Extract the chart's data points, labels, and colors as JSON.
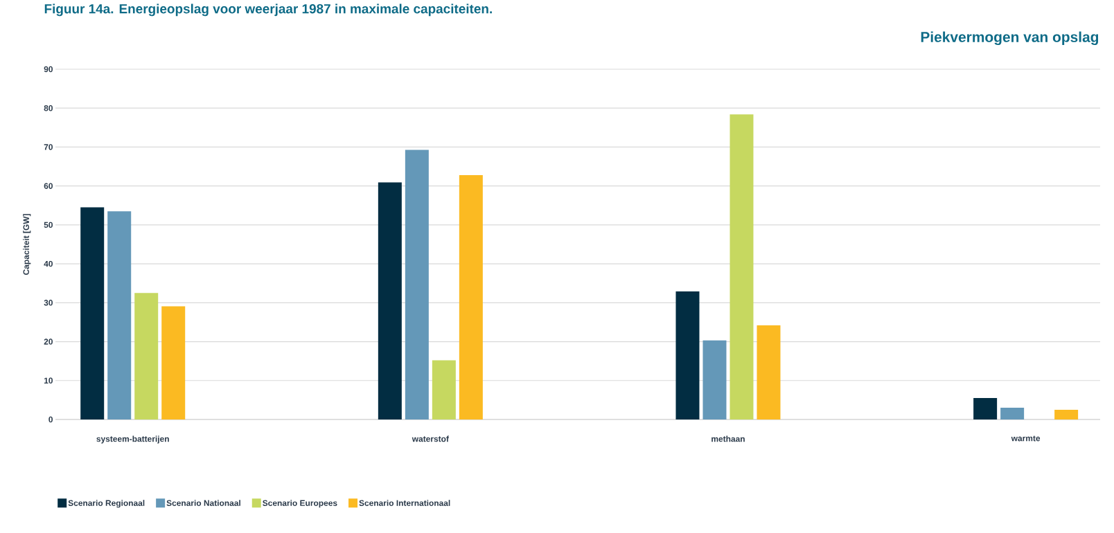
{
  "chart_data": {
    "type": "bar",
    "title": "Figuur 14a. Energieopslag voor weerjaar 1987 in maximale capaciteiten.",
    "subtitle": "Piekvermogen van opslag",
    "ylabel": "Capaciteit [GW]",
    "categories": [
      "systeem-batterijen",
      "waterstof",
      "methaan",
      "warmte"
    ],
    "series": [
      {
        "name": "Scenario Regionaal",
        "color": "#022d42",
        "values": [
          54.5,
          60.9,
          32.9,
          5.5
        ]
      },
      {
        "name": "Scenario Nationaal",
        "color": "#6498b8",
        "values": [
          53.5,
          69.3,
          20.3,
          3.0
        ]
      },
      {
        "name": "Scenario Europees",
        "color": "#c6d860",
        "values": [
          32.5,
          15.2,
          78.4,
          null
        ]
      },
      {
        "name": "Scenario Internationaal",
        "color": "#fbba22",
        "values": [
          29.1,
          62.8,
          24.2,
          2.5
        ]
      }
    ],
    "ylim": [
      0,
      90
    ],
    "yticks": [
      0,
      10,
      20,
      30,
      40,
      50,
      60,
      70,
      80,
      90
    ],
    "grid": "y",
    "legend": "bottom left"
  }
}
